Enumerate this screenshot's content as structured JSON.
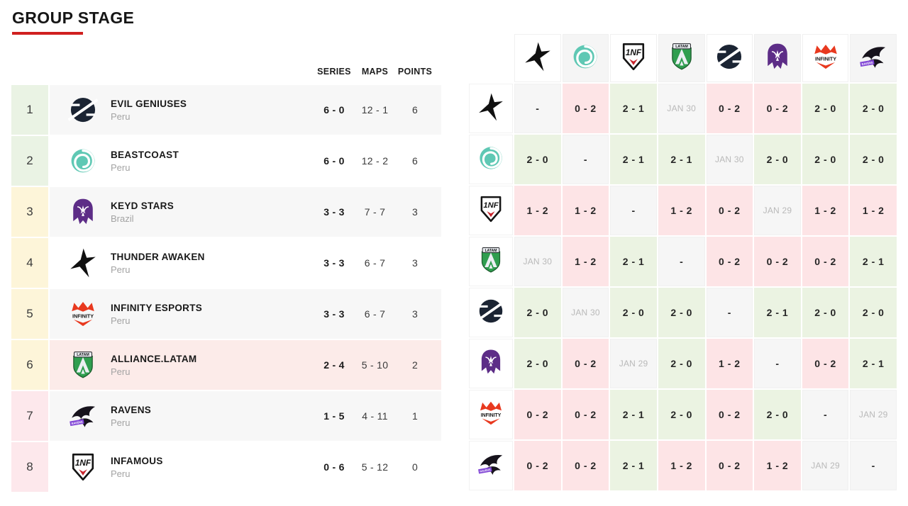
{
  "page": {
    "title": "GROUP STAGE"
  },
  "colors": {
    "accent": "#d0201f",
    "win_bg": "#ebf3e2",
    "loss_bg": "#fde4e6",
    "neutral_bg": "#f6f6f6",
    "zone_green": "#eaf3e4",
    "zone_yellow": "#fdf5d9",
    "zone_red": "#fde8ec",
    "row_highlight": "#fcebe9",
    "scheduled_text": "#b9b9b9"
  },
  "standings": {
    "columns": {
      "series": "SERIES",
      "maps": "MAPS",
      "points": "POINTS"
    },
    "rows": [
      {
        "rank": "1",
        "team": "EVIL GENIUSES",
        "country": "Peru",
        "logo": "evil-geniuses",
        "series": "6 - 0",
        "maps": "12 - 1",
        "points": "6",
        "zone": "green",
        "row_style": "bg-gray"
      },
      {
        "rank": "2",
        "team": "BEASTCOAST",
        "country": "Peru",
        "logo": "beastcoast",
        "series": "6 - 0",
        "maps": "12 - 2",
        "points": "6",
        "zone": "green",
        "row_style": "bg-white"
      },
      {
        "rank": "3",
        "team": "KEYD STARS",
        "country": "Brazil",
        "logo": "keyd-stars",
        "series": "3 - 3",
        "maps": "7 - 7",
        "points": "3",
        "zone": "yellow",
        "row_style": "bg-gray"
      },
      {
        "rank": "4",
        "team": "THUNDER AWAKEN",
        "country": "Peru",
        "logo": "thunder-awaken",
        "series": "3 - 3",
        "maps": "6 - 7",
        "points": "3",
        "zone": "yellow",
        "row_style": "bg-white"
      },
      {
        "rank": "5",
        "team": "INFINITY ESPORTS",
        "country": "Peru",
        "logo": "infinity",
        "series": "3 - 3",
        "maps": "6 - 7",
        "points": "3",
        "zone": "yellow",
        "row_style": "bg-gray"
      },
      {
        "rank": "6",
        "team": "ALLIANCE.LATAM",
        "country": "Peru",
        "logo": "alliance",
        "series": "2 - 4",
        "maps": "5 - 10",
        "points": "2",
        "zone": "yellow",
        "row_style": "bg-pink"
      },
      {
        "rank": "7",
        "team": "RAVENS",
        "country": "Peru",
        "logo": "ravens",
        "series": "1 - 5",
        "maps": "4 - 11",
        "points": "1",
        "zone": "red",
        "row_style": "bg-gray"
      },
      {
        "rank": "8",
        "team": "INFAMOUS",
        "country": "Peru",
        "logo": "infamous",
        "series": "0 - 6",
        "maps": "5 - 12",
        "points": "0",
        "zone": "red",
        "row_style": "bg-white"
      }
    ]
  },
  "matrix": {
    "teams": [
      {
        "name": "Thunder Awaken",
        "logo": "thunder-awaken"
      },
      {
        "name": "Beastcoast",
        "logo": "beastcoast"
      },
      {
        "name": "Infamous",
        "logo": "infamous"
      },
      {
        "name": "Alliance.LATAM",
        "logo": "alliance"
      },
      {
        "name": "Evil Geniuses",
        "logo": "evil-geniuses"
      },
      {
        "name": "Keyd Stars",
        "logo": "keyd-stars"
      },
      {
        "name": "Infinity Esports",
        "logo": "infinity"
      },
      {
        "name": "Ravens",
        "logo": "ravens"
      }
    ],
    "cells": [
      [
        "-",
        "0 - 2",
        "2 - 1",
        "JAN 30",
        "0 - 2",
        "0 - 2",
        "2 - 0",
        "2 - 0"
      ],
      [
        "2 - 0",
        "-",
        "2 - 1",
        "2 - 1",
        "JAN 30",
        "2 - 0",
        "2 - 0",
        "2 - 0"
      ],
      [
        "1 - 2",
        "1 - 2",
        "-",
        "1 - 2",
        "0 - 2",
        "JAN 29",
        "1 - 2",
        "1 - 2"
      ],
      [
        "JAN 30",
        "1 - 2",
        "2 - 1",
        "-",
        "0 - 2",
        "0 - 2",
        "0 - 2",
        "2 - 1"
      ],
      [
        "2 - 0",
        "JAN 30",
        "2 - 0",
        "2 - 0",
        "-",
        "2 - 1",
        "2 - 0",
        "2 - 0"
      ],
      [
        "2 - 0",
        "0 - 2",
        "JAN 29",
        "2 - 0",
        "1 - 2",
        "-",
        "0 - 2",
        "2 - 1"
      ],
      [
        "0 - 2",
        "0 - 2",
        "2 - 1",
        "2 - 0",
        "0 - 2",
        "2 - 0",
        "-",
        "JAN 29"
      ],
      [
        "0 - 2",
        "0 - 2",
        "2 - 1",
        "1 - 2",
        "0 - 2",
        "1 - 2",
        "JAN 29",
        "-"
      ]
    ]
  }
}
